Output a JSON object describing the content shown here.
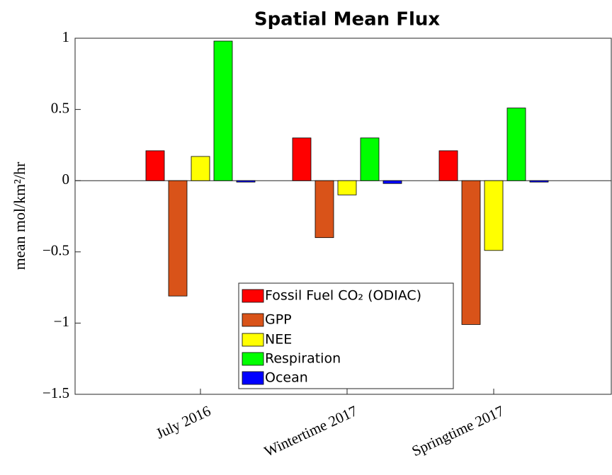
{
  "chart_data": {
    "type": "bar",
    "title": "Spatial Mean Flux",
    "y_label": "mean mol/km²/hr",
    "categories": [
      "July 2016",
      "Wintertime 2017",
      "Springtime 2017"
    ],
    "series": [
      {
        "name": "Fossil Fuel CO₂ (ODIAC)",
        "color": "#ff0000",
        "values": [
          0.21,
          0.3,
          0.21
        ]
      },
      {
        "name": "GPP",
        "color": "#d95319",
        "values": [
          -0.81,
          -0.4,
          -1.01
        ]
      },
      {
        "name": "NEE",
        "color": "#ffff00",
        "values": [
          0.17,
          -0.1,
          -0.49
        ]
      },
      {
        "name": "Respiration",
        "color": "#00ff00",
        "values": [
          0.98,
          0.3,
          0.51
        ]
      },
      {
        "name": "Ocean",
        "color": "#0000ff",
        "values": [
          -0.01,
          -0.02,
          -0.01
        ]
      }
    ],
    "ylim": [
      -1.5,
      1
    ],
    "yticks": [
      {
        "value": -1.5,
        "label": "−1.5"
      },
      {
        "value": -1,
        "label": "−1"
      },
      {
        "value": -0.5,
        "label": "−0.5"
      },
      0,
      0.5,
      1
    ],
    "grid": false
  }
}
